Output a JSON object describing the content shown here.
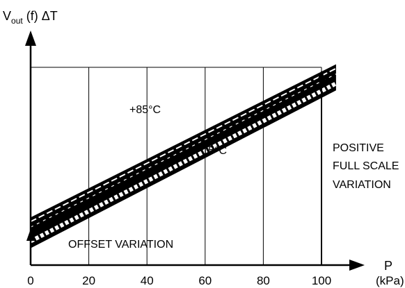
{
  "y_axis": {
    "label_main": "V",
    "label_sub": "out",
    "label_rest": " (f) ΔT"
  },
  "x_axis": {
    "label": "P",
    "unit": "(kPa)"
  },
  "x_ticks": [
    "0",
    "20",
    "40",
    "60",
    "80",
    "100"
  ],
  "annotations": {
    "hot": "+85°C",
    "cold": "−15°C",
    "offset": "OFFSET VARIATION",
    "fullscale": [
      "POSITIVE",
      "FULL SCALE",
      "VARIATION"
    ]
  },
  "chart_data": {
    "type": "line",
    "title": "",
    "xlabel": "P (kPa)",
    "ylabel": "Vout (f) ΔT",
    "x_ticks": [
      0,
      20,
      40,
      60,
      80,
      100
    ],
    "xlim": [
      0,
      105
    ],
    "series": [
      {
        "name": "+85°C",
        "x": [
          0,
          105
        ],
        "y": [
          0.56,
          2.53
        ]
      },
      {
        "name": "−15°C",
        "x": [
          0,
          105
        ],
        "y": [
          0.28,
          2.31
        ]
      }
    ],
    "grid": true
  }
}
